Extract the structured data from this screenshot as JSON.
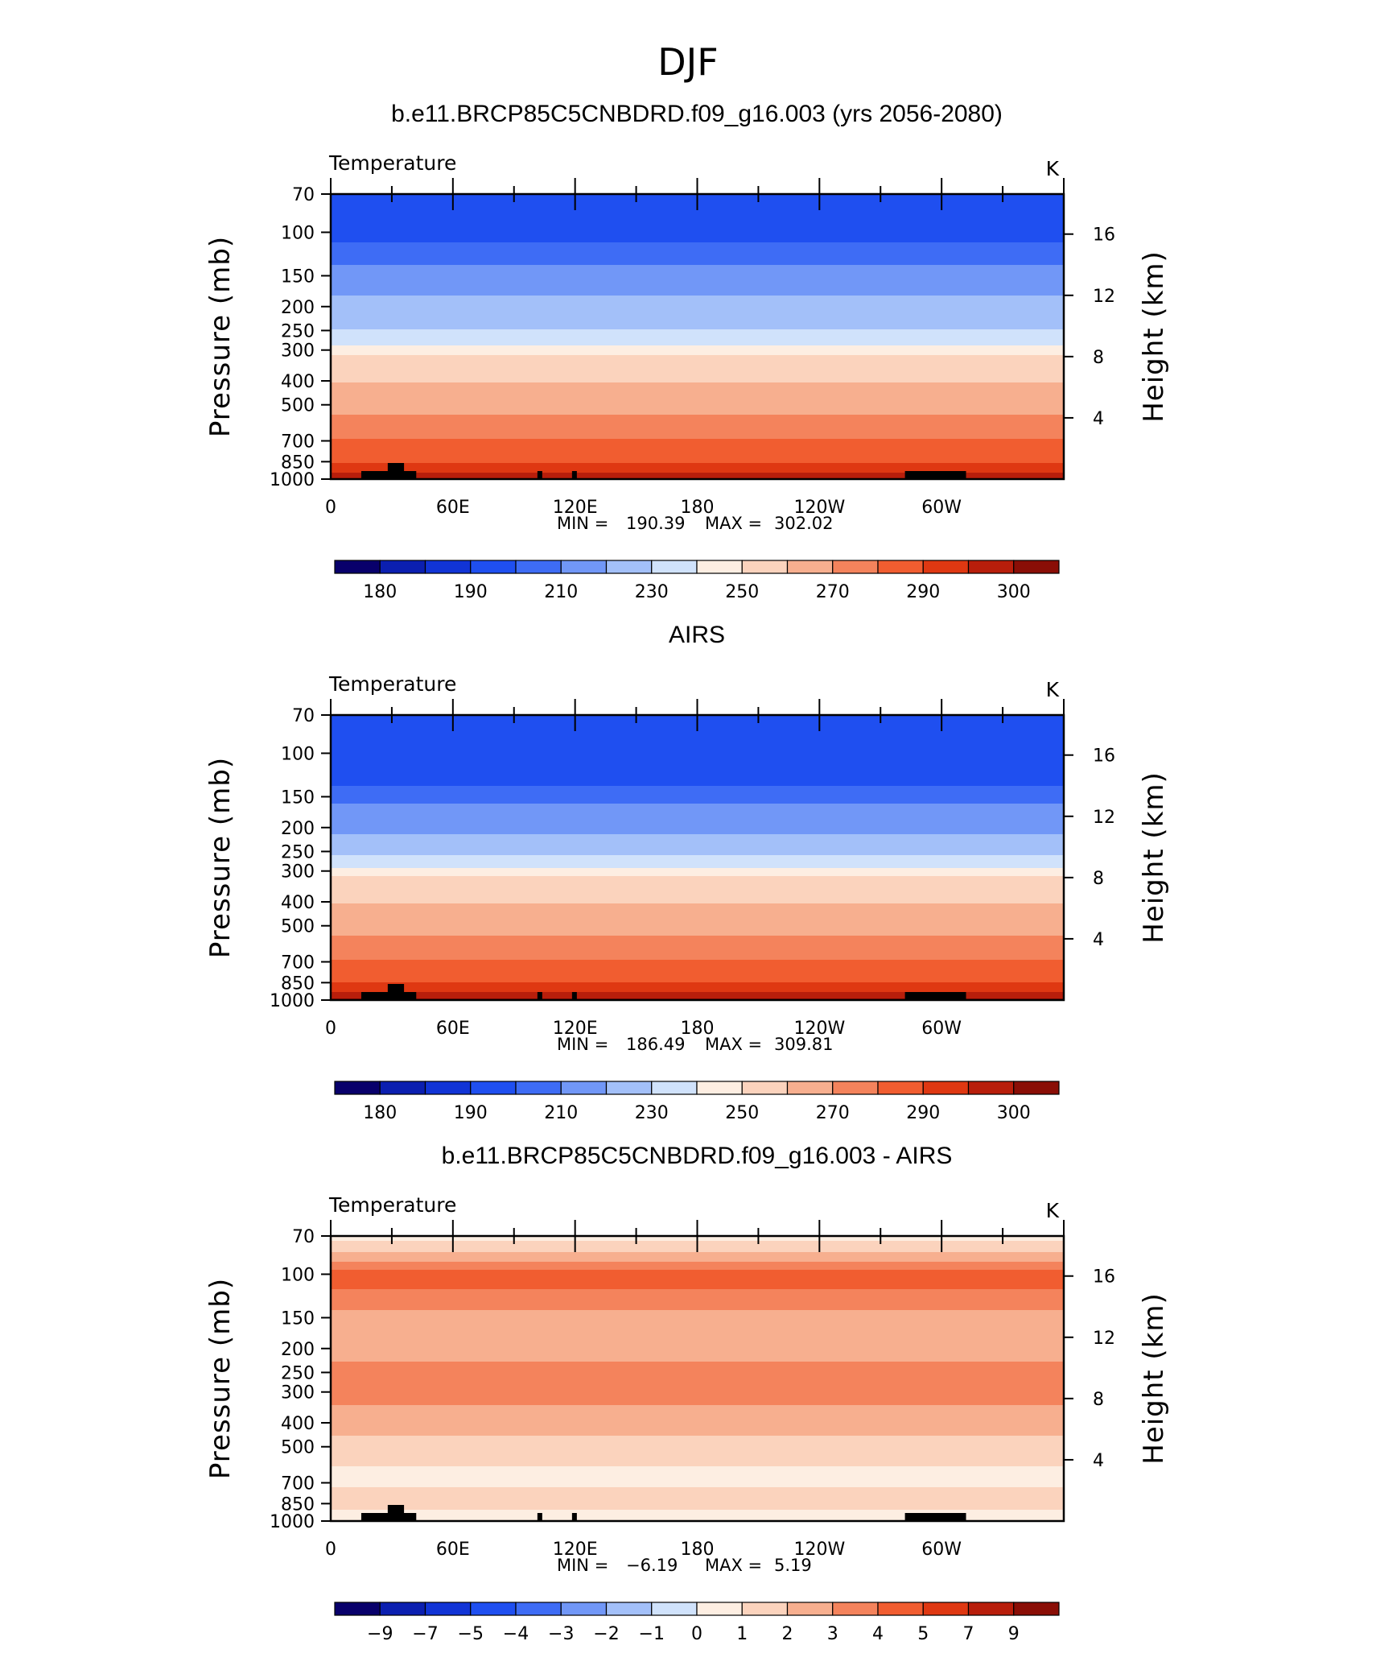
{
  "figure_title": "DJF",
  "colors": {
    "temperature_levels": [
      "#08006b",
      "#0b1fb0",
      "#1134d6",
      "#1f4ff0",
      "#3e6cf5",
      "#7197f7",
      "#a3c0f9",
      "#d0e2fb",
      "#fdeee2",
      "#fbd3bd",
      "#f7af8f",
      "#f4835c",
      "#f15d30",
      "#df3812",
      "#b81e0b",
      "#8a0e06"
    ],
    "difference_levels": [
      "#08006b",
      "#0b1fb0",
      "#1134d6",
      "#1f4ff0",
      "#3e6cf5",
      "#7197f7",
      "#a3c0f9",
      "#d0e2fb",
      "#fdeee2",
      "#fbd3bd",
      "#f7af8f",
      "#f4835c",
      "#f15d30",
      "#df3812",
      "#b81e0b",
      "#8a0e06"
    ],
    "terrain": "#000000"
  },
  "chart_data": [
    {
      "type": "heatmap",
      "title": "b.e11.BRCP85C5CNBDRD.f09_g16.003 (yrs 2056-2080)",
      "variable_label": "Temperature",
      "units": "K",
      "ylabel": "Pressure (mb)",
      "y2label": "Height (km)",
      "x_ticks": [
        "0",
        "60E",
        "120E",
        "180",
        "120W",
        "60W"
      ],
      "y_ticks": [
        "70",
        "100",
        "150",
        "200",
        "250",
        "300",
        "400",
        "500",
        "700",
        "850",
        "1000"
      ],
      "y2_ticks": [
        "16",
        "12",
        "8",
        "4"
      ],
      "min_label": "MIN =",
      "min_value": "190.39",
      "max_label": "MAX =",
      "max_value": "302.02",
      "colorbar_labels": [
        "180",
        "190",
        "210",
        "230",
        "250",
        "270",
        "290",
        "300"
      ],
      "profile_by_pressure": [
        [
          70,
          196
        ],
        [
          100,
          196
        ],
        [
          130,
          208
        ],
        [
          160,
          218
        ],
        [
          200,
          222
        ],
        [
          240,
          228
        ],
        [
          280,
          238
        ],
        [
          320,
          252
        ],
        [
          380,
          258
        ],
        [
          440,
          263
        ],
        [
          520,
          268
        ],
        [
          620,
          275
        ],
        [
          720,
          282
        ],
        [
          820,
          288
        ],
        [
          900,
          292
        ],
        [
          1000,
          300
        ]
      ]
    },
    {
      "type": "heatmap",
      "title": "AIRS",
      "variable_label": "Temperature",
      "units": "K",
      "ylabel": "Pressure (mb)",
      "y2label": "Height (km)",
      "x_ticks": [
        "0",
        "60E",
        "120E",
        "180",
        "120W",
        "60W"
      ],
      "y_ticks": [
        "70",
        "100",
        "150",
        "200",
        "250",
        "300",
        "400",
        "500",
        "700",
        "850",
        "1000"
      ],
      "y2_ticks": [
        "16",
        "12",
        "8",
        "4"
      ],
      "min_label": "MIN =",
      "min_value": "186.49",
      "max_label": "MAX =",
      "max_value": "309.81",
      "colorbar_labels": [
        "180",
        "190",
        "210",
        "230",
        "250",
        "270",
        "290",
        "300"
      ],
      "profile_by_pressure": [
        [
          70,
          196
        ],
        [
          90,
          196
        ],
        [
          105,
          194
        ],
        [
          125,
          196
        ],
        [
          160,
          210
        ],
        [
          200,
          218
        ],
        [
          240,
          225
        ],
        [
          280,
          236
        ],
        [
          320,
          252
        ],
        [
          380,
          258
        ],
        [
          440,
          263
        ],
        [
          520,
          268
        ],
        [
          620,
          275
        ],
        [
          720,
          282
        ],
        [
          820,
          288
        ],
        [
          900,
          293
        ],
        [
          1000,
          301
        ]
      ]
    },
    {
      "type": "heatmap",
      "title": "b.e11.BRCP85C5CNBDRD.f09_g16.003 - AIRS",
      "variable_label": "Temperature",
      "units": "K",
      "ylabel": "Pressure (mb)",
      "y2label": "Height (km)",
      "x_ticks": [
        "0",
        "60E",
        "120E",
        "180",
        "120W",
        "60W"
      ],
      "y_ticks": [
        "70",
        "100",
        "150",
        "200",
        "250",
        "300",
        "400",
        "500",
        "700",
        "850",
        "1000"
      ],
      "y2_ticks": [
        "16",
        "12",
        "8",
        "4"
      ],
      "min_label": "MIN =",
      "min_value": "−6.19",
      "max_label": "MAX =",
      "max_value": "5.19",
      "colorbar_labels": [
        "−9",
        "−7",
        "−5",
        "−4",
        "−3",
        "−2",
        "−1",
        "0",
        "1",
        "2",
        "3",
        "4",
        "5",
        "7",
        "9"
      ],
      "profile_by_pressure": [
        [
          70,
          0.5
        ],
        [
          85,
          2.5
        ],
        [
          100,
          4.5
        ],
        [
          130,
          3.5
        ],
        [
          150,
          2.5
        ],
        [
          200,
          2.5
        ],
        [
          250,
          3.5
        ],
        [
          300,
          3.5
        ],
        [
          380,
          2.5
        ],
        [
          450,
          2.0
        ],
        [
          550,
          1.5
        ],
        [
          650,
          0.5
        ],
        [
          800,
          1.5
        ],
        [
          1000,
          0.5
        ]
      ]
    }
  ]
}
